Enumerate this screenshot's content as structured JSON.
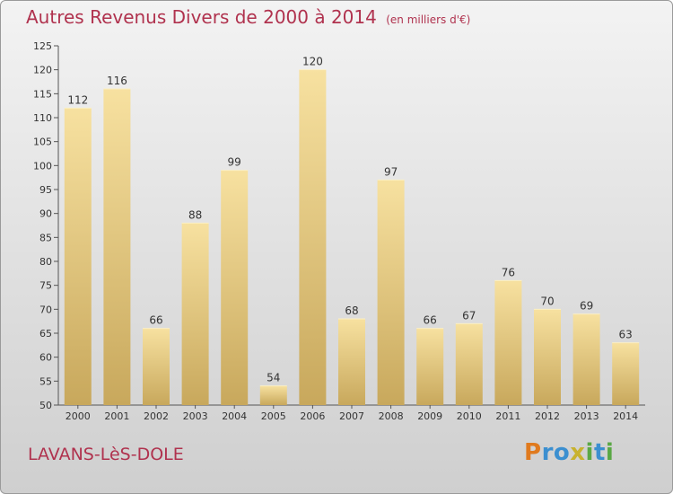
{
  "header": {
    "title": "Autres Revenus Divers de 2000 à 2014",
    "unit": "(en milliers d'€)"
  },
  "footer": {
    "place": "LAVANS-LèS-DOLE",
    "logo": "Proxiti",
    "logo_letters": [
      {
        "ch": "P",
        "color": "#e07a1e"
      },
      {
        "ch": "r",
        "color": "#3b8fd0"
      },
      {
        "ch": "o",
        "color": "#3b8fd0"
      },
      {
        "ch": "x",
        "color": "#c8b22e"
      },
      {
        "ch": "i",
        "color": "#5aa845"
      },
      {
        "ch": "t",
        "color": "#3b8fd0"
      },
      {
        "ch": "i",
        "color": "#5aa845"
      }
    ]
  },
  "chart_data": {
    "type": "bar",
    "categories": [
      "2000",
      "2001",
      "2002",
      "2003",
      "2004",
      "2005",
      "2006",
      "2007",
      "2008",
      "2009",
      "2010",
      "2011",
      "2012",
      "2013",
      "2014"
    ],
    "values": [
      112,
      116,
      66,
      88,
      99,
      54,
      120,
      68,
      97,
      66,
      67,
      76,
      70,
      69,
      63
    ],
    "ylim": [
      50,
      125
    ],
    "yticks": [
      50,
      55,
      60,
      65,
      70,
      75,
      80,
      85,
      90,
      95,
      100,
      105,
      110,
      115,
      120,
      125
    ],
    "grid": false,
    "colors": {
      "bar_light": "#f7e1a0",
      "bar_dark": "#c8a85c",
      "title": "#b0324e"
    }
  }
}
